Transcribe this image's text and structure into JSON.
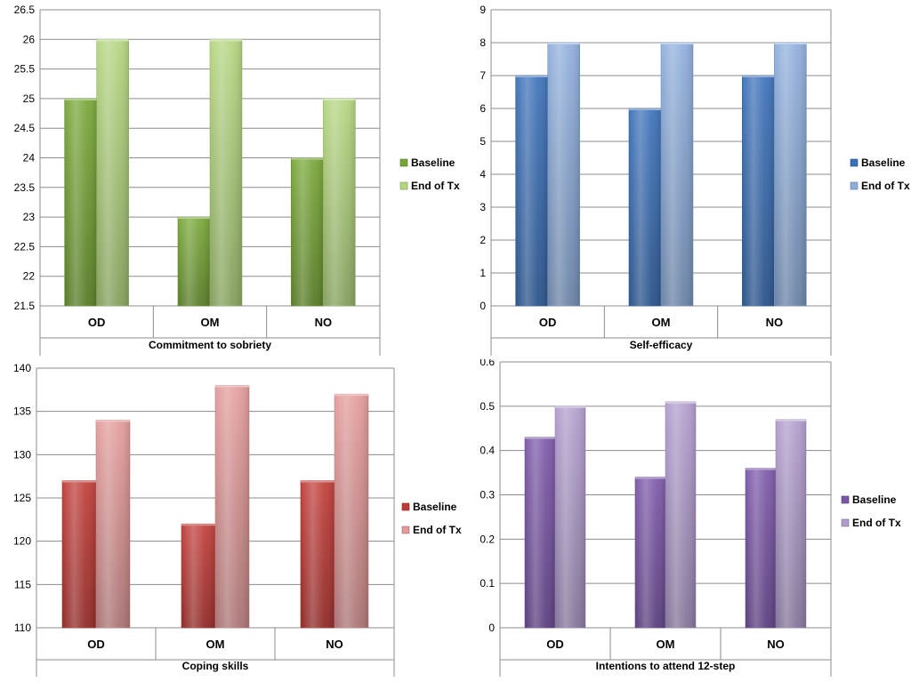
{
  "chart_data": [
    {
      "type": "bar",
      "xlabel": "Commitment to sobriety",
      "categories": [
        "OD",
        "OM",
        "NO"
      ],
      "ylim": [
        21.5,
        26.5
      ],
      "yticks": [
        "21.5",
        "22",
        "22.5",
        "23",
        "23.5",
        "24",
        "24.5",
        "25",
        "25.5",
        "26",
        "26.5"
      ],
      "grid": true,
      "legend_position": "right",
      "series": [
        {
          "name": "Baseline",
          "values": [
            25,
            23,
            24
          ],
          "color": "#76a535"
        },
        {
          "name": "End of Tx",
          "values": [
            26,
            26,
            25
          ],
          "color": "#b3d57f"
        }
      ]
    },
    {
      "type": "bar",
      "xlabel": "Self-efficacy",
      "categories": [
        "OD",
        "OM",
        "NO"
      ],
      "ylim": [
        0,
        9
      ],
      "yticks": [
        "0",
        "1",
        "2",
        "3",
        "4",
        "5",
        "6",
        "7",
        "8",
        "9"
      ],
      "grid": true,
      "legend_position": "right",
      "series": [
        {
          "name": "Baseline",
          "values": [
            7,
            6,
            7
          ],
          "color": "#3a70b8"
        },
        {
          "name": "End of Tx",
          "values": [
            8,
            8,
            8
          ],
          "color": "#8eaedc"
        }
      ]
    },
    {
      "type": "bar",
      "xlabel": "Coping skills",
      "categories": [
        "OD",
        "OM",
        "NO"
      ],
      "ylim": [
        110,
        140
      ],
      "yticks": [
        "110",
        "115",
        "120",
        "125",
        "130",
        "135",
        "140"
      ],
      "grid": true,
      "legend_position": "right",
      "series": [
        {
          "name": "Baseline",
          "values": [
            127,
            122,
            127
          ],
          "color": "#c03a36"
        },
        {
          "name": "End of Tx",
          "values": [
            134,
            138,
            137
          ],
          "color": "#e39a9a"
        }
      ]
    },
    {
      "type": "bar",
      "xlabel": "Intentions to attend 12-step",
      "categories": [
        "OD",
        "OM",
        "NO"
      ],
      "ylim": [
        0,
        0.6
      ],
      "yticks": [
        "0",
        "0.1",
        "0.2",
        "0.3",
        "0.4",
        "0.5",
        "0.6"
      ],
      "grid": true,
      "legend_position": "right",
      "series": [
        {
          "name": "Baseline",
          "values": [
            0.43,
            0.34,
            0.36
          ],
          "color": "#7a55a8"
        },
        {
          "name": "End of Tx",
          "values": [
            0.5,
            0.51,
            0.47
          ],
          "color": "#b09ccc"
        }
      ]
    }
  ]
}
